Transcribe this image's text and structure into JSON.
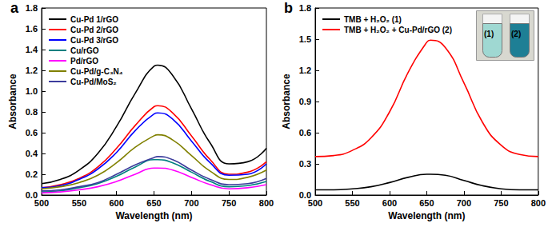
{
  "chart_data": [
    {
      "type": "line",
      "title": "a",
      "x_label": "Wavelength (nm)",
      "y_label": "Absorbance",
      "x": [
        500,
        525,
        550,
        575,
        600,
        625,
        650,
        655,
        675,
        700,
        725,
        750,
        775,
        800
      ],
      "series": [
        {
          "name": "Cu-Pd 1/rGO",
          "color": "#000000",
          "values": [
            0.11,
            0.15,
            0.24,
            0.4,
            0.66,
            0.98,
            1.24,
            1.25,
            1.15,
            0.83,
            0.5,
            0.3,
            0.32,
            0.45
          ]
        },
        {
          "name": "Cu-Pd 2/rGO",
          "color": "#ff0000",
          "values": [
            0.07,
            0.1,
            0.16,
            0.27,
            0.45,
            0.67,
            0.85,
            0.86,
            0.79,
            0.57,
            0.34,
            0.2,
            0.22,
            0.32
          ]
        },
        {
          "name": "Cu-Pd 3/rGO",
          "color": "#0000ff",
          "values": [
            0.07,
            0.09,
            0.15,
            0.25,
            0.41,
            0.62,
            0.78,
            0.79,
            0.73,
            0.52,
            0.31,
            0.19,
            0.2,
            0.3
          ]
        },
        {
          "name": "Cu/rGO",
          "color": "#008080",
          "values": [
            0.03,
            0.04,
            0.07,
            0.11,
            0.18,
            0.27,
            0.34,
            0.34,
            0.31,
            0.22,
            0.13,
            0.08,
            0.09,
            0.13
          ]
        },
        {
          "name": "Pd/rGO",
          "color": "#ff00ff",
          "values": [
            0.02,
            0.03,
            0.05,
            0.08,
            0.13,
            0.2,
            0.26,
            0.26,
            0.24,
            0.17,
            0.1,
            0.06,
            0.07,
            0.1
          ]
        },
        {
          "name": "Cu-Pd/g-C₃N₄",
          "color": "#808000",
          "values": [
            0.06,
            0.08,
            0.12,
            0.19,
            0.31,
            0.46,
            0.57,
            0.58,
            0.53,
            0.38,
            0.23,
            0.15,
            0.17,
            0.24
          ]
        },
        {
          "name": "Cu-Pd/MoS₂",
          "color": "#3c3c9c",
          "values": [
            0.04,
            0.05,
            0.08,
            0.12,
            0.2,
            0.29,
            0.36,
            0.37,
            0.34,
            0.24,
            0.15,
            0.1,
            0.11,
            0.16
          ]
        }
      ],
      "xlim": [
        500,
        800
      ],
      "xticks": [
        500,
        550,
        600,
        650,
        700,
        750,
        800
      ],
      "ylim": [
        0,
        1.8
      ],
      "yticks": [
        {
          "value": 0,
          "label": "0.0"
        },
        0.2,
        0.4,
        0.6,
        0.8,
        {
          "value": 1,
          "label": "1.0"
        },
        1.2,
        1.4,
        1.6,
        1.8
      ],
      "grid": false,
      "legend": "upper left"
    },
    {
      "type": "line",
      "title": "b",
      "x_label": "Wavelength (nm)",
      "y_label": "Absorbance",
      "x": [
        500,
        525,
        550,
        575,
        600,
        625,
        650,
        655,
        675,
        700,
        725,
        750,
        775,
        800
      ],
      "series": [
        {
          "name": "TMB + H₂O₂ (1)",
          "color": "#000000",
          "values": [
            0.05,
            0.05,
            0.06,
            0.08,
            0.12,
            0.17,
            0.2,
            0.2,
            0.19,
            0.14,
            0.09,
            0.06,
            0.05,
            0.05
          ]
        },
        {
          "name": "TMB + H₂O₂ + Cu-Pd/rGO (2)",
          "color": "#ff0000",
          "values": [
            0.37,
            0.38,
            0.43,
            0.55,
            0.8,
            1.18,
            1.47,
            1.49,
            1.42,
            1.08,
            0.7,
            0.48,
            0.39,
            0.37
          ]
        }
      ],
      "xlim": [
        500,
        800
      ],
      "xticks": [
        500,
        550,
        600,
        650,
        700,
        750,
        800
      ],
      "ylim": [
        0,
        1.8
      ],
      "yticks": [
        {
          "value": 0,
          "label": "0.0"
        },
        0.3,
        0.6,
        0.9,
        1.2,
        1.5,
        1.8
      ],
      "annotations": [
        "(1)",
        "(2)"
      ],
      "grid": false,
      "legend": "upper left"
    }
  ]
}
